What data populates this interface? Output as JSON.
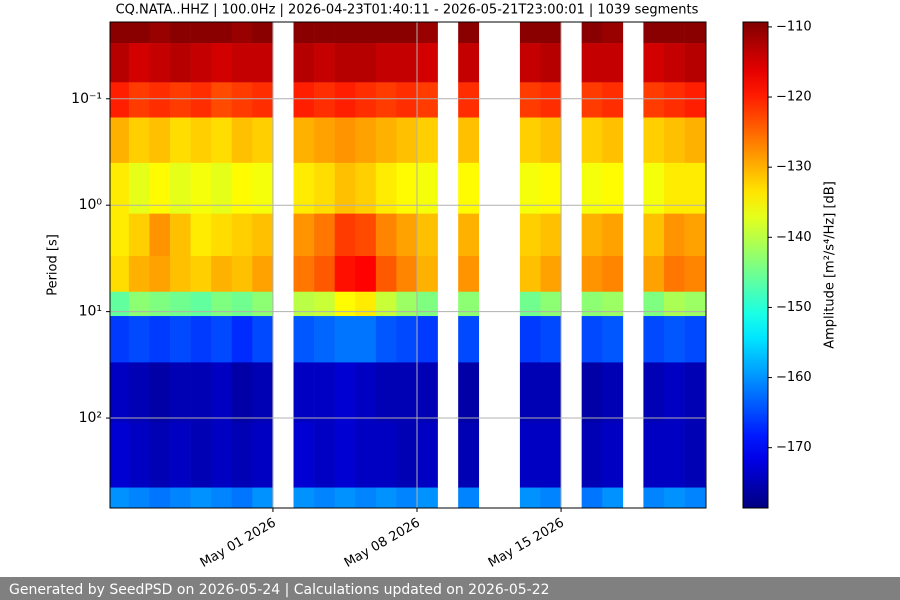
{
  "chart_data": {
    "type": "heatmap",
    "title": "CQ.NATA..HHZ | 100.0Hz | 2026-04-23T01:40:11 - 2026-05-21T23:00:01 | 1039 segments",
    "ylabel": "Period [s]",
    "colorbar_label": "Amplitude [m²/s⁴/Hz] [dB]",
    "colormap": "jet",
    "grid": true,
    "ylog": true,
    "y_inverted": true,
    "xlim": [
      "2026-04-23T02:00:00Z",
      "2026-05-22T01:00:00Z"
    ],
    "xticks": [
      {
        "value": "2026-05-01",
        "label": "May 01 2026"
      },
      {
        "value": "2026-05-08",
        "label": "May 08 2026"
      },
      {
        "value": "2026-05-15",
        "label": "May 15 2026"
      }
    ],
    "ylim": [
      0.019,
      700
    ],
    "yticks": [
      {
        "value": 0.1,
        "label": "10⁻¹"
      },
      {
        "value": 1,
        "label": "10⁰"
      },
      {
        "value": 10,
        "label": "10¹"
      },
      {
        "value": 100,
        "label": "10²"
      }
    ],
    "clim": [
      -178.6,
      -109.3
    ],
    "cticks": [
      {
        "value": -110,
        "label": "−110"
      },
      {
        "value": -120,
        "label": "−120"
      },
      {
        "value": -130,
        "label": "−130"
      },
      {
        "value": -140,
        "label": "−140"
      },
      {
        "value": -150,
        "label": "−150"
      },
      {
        "value": -160,
        "label": "−160"
      },
      {
        "value": -170,
        "label": "−170"
      }
    ],
    "x_edges": [
      "2026-04-23",
      "2026-04-24",
      "2026-04-25",
      "2026-04-26",
      "2026-04-27",
      "2026-04-28",
      "2026-04-29",
      "2026-04-30",
      "2026-05-01",
      "2026-05-02",
      "2026-05-03",
      "2026-05-04",
      "2026-05-05",
      "2026-05-06",
      "2026-05-07",
      "2026-05-08",
      "2026-05-09",
      "2026-05-10",
      "2026-05-11",
      "2026-05-12",
      "2026-05-13",
      "2026-05-14",
      "2026-05-15",
      "2026-05-16",
      "2026-05-17",
      "2026-05-18",
      "2026-05-19",
      "2026-05-20",
      "2026-05-21",
      "2026-05-22"
    ],
    "y_edges": [
      0.019,
      0.03,
      0.07,
      0.15,
      0.4,
      1.2,
      3,
      6.5,
      11,
      30,
      110,
      450,
      700
    ],
    "z": [
      [
        -110,
        -113,
        -120,
        -130,
        -134,
        -134,
        -133,
        -146,
        -166,
        -174,
        -173,
        -160
      ],
      [
        -110,
        -115,
        -122,
        -132,
        -137,
        -132,
        -130,
        -143,
        -165,
        -175,
        -174,
        -161
      ],
      [
        -111,
        -114,
        -121,
        -131,
        -135,
        -128,
        -129,
        -144,
        -166,
        -176,
        -175,
        -162
      ],
      [
        -110,
        -113,
        -122,
        -133,
        -137,
        -131,
        -131,
        -145,
        -165,
        -175,
        -174,
        -161
      ],
      [
        -110,
        -114,
        -121,
        -132,
        -136,
        -134,
        -132,
        -146,
        -166,
        -175,
        -175,
        -160
      ],
      [
        -110,
        -115,
        -123,
        -133,
        -137,
        -133,
        -130,
        -144,
        -165,
        -174,
        -174,
        -161
      ],
      [
        -111,
        -114,
        -122,
        -131,
        -135,
        -132,
        -131,
        -145,
        -167,
        -176,
        -175,
        -162
      ],
      [
        -110,
        -114,
        -121,
        -132,
        -136,
        -131,
        -129,
        -143,
        -165,
        -175,
        -174,
        -160
      ],
      null,
      [
        -110,
        -113,
        -120,
        -130,
        -134,
        -128,
        -126,
        -140,
        -164,
        -174,
        -173,
        -160
      ],
      [
        -110,
        -114,
        -121,
        -129,
        -133,
        -126,
        -124,
        -139,
        -163,
        -174,
        -174,
        -161
      ],
      [
        -110,
        -113,
        -120,
        -128,
        -131,
        -122,
        -119,
        -135,
        -162,
        -173,
        -173,
        -160
      ],
      [
        -110,
        -113,
        -121,
        -129,
        -132,
        -123,
        -118,
        -134,
        -162,
        -174,
        -174,
        -161
      ],
      [
        -110,
        -114,
        -122,
        -130,
        -134,
        -127,
        -124,
        -139,
        -164,
        -175,
        -174,
        -160
      ],
      [
        -110,
        -114,
        -121,
        -131,
        -135,
        -129,
        -127,
        -142,
        -165,
        -175,
        -175,
        -161
      ],
      [
        -111,
        -115,
        -122,
        -132,
        -136,
        -131,
        -130,
        -144,
        -166,
        -175,
        -174,
        -160
      ],
      null,
      [
        -110,
        -114,
        -121,
        -131,
        -135,
        -130,
        -128,
        -143,
        -165,
        -176,
        -175,
        -161
      ],
      null,
      null,
      [
        -110,
        -114,
        -122,
        -132,
        -136,
        -132,
        -131,
        -145,
        -166,
        -175,
        -174,
        -160
      ],
      [
        -110,
        -113,
        -121,
        -131,
        -135,
        -131,
        -129,
        -143,
        -165,
        -175,
        -174,
        -161
      ],
      null,
      [
        -110,
        -114,
        -122,
        -132,
        -136,
        -130,
        -128,
        -143,
        -165,
        -176,
        -175,
        -162
      ],
      [
        -111,
        -114,
        -121,
        -131,
        -135,
        -129,
        -127,
        -142,
        -164,
        -175,
        -174,
        -160
      ],
      null,
      [
        -110,
        -115,
        -122,
        -132,
        -136,
        -131,
        -129,
        -144,
        -165,
        -175,
        -174,
        -161
      ],
      [
        -110,
        -114,
        -121,
        -131,
        -134,
        -128,
        -126,
        -141,
        -164,
        -174,
        -174,
        -160
      ],
      [
        -110,
        -113,
        -120,
        -130,
        -134,
        -129,
        -127,
        -142,
        -165,
        -175,
        -175,
        -161
      ]
    ]
  },
  "footer": {
    "text": "Generated by SeedPSD on 2026-05-24 | Calculations updated on 2026-05-22"
  }
}
